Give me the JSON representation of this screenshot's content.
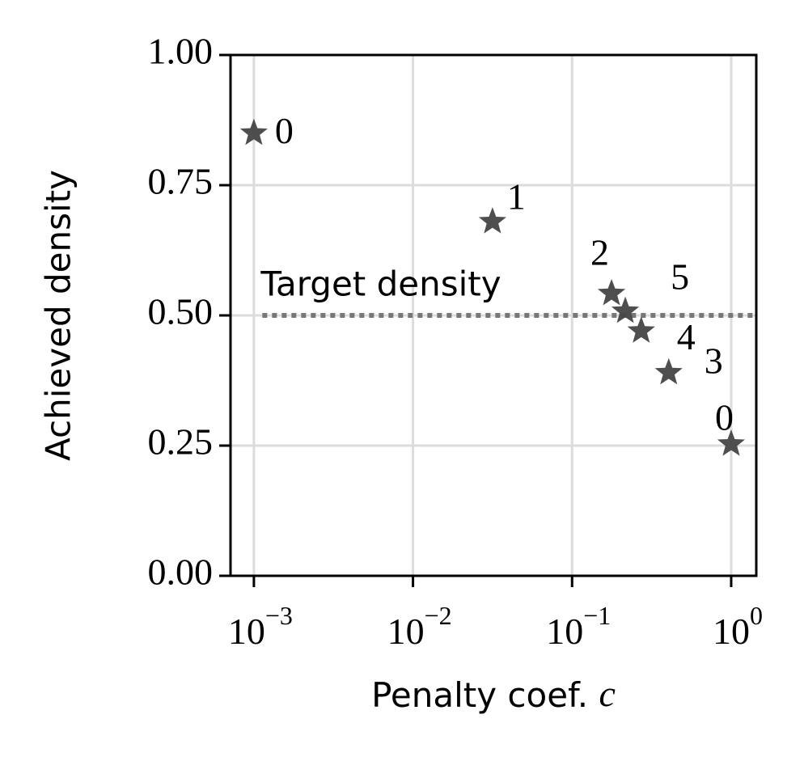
{
  "chart_data": {
    "type": "scatter",
    "xlabel": "Penalty coef.",
    "xlabel_symbol": "c",
    "ylabel": "Achieved density",
    "x": [
      0.001,
      0.0316,
      0.177,
      0.216,
      0.272,
      0.405,
      1.0
    ],
    "values": [
      0.85,
      0.68,
      0.542,
      0.508,
      0.47,
      0.39,
      0.253
    ],
    "point_labels": [
      "0",
      "1",
      "2",
      "5",
      "4",
      "3",
      "0"
    ],
    "color": "#444444",
    "xscale": "log",
    "xlim": [
      0.000713,
      1.438
    ],
    "ylim": [
      0,
      1
    ],
    "xticks": [
      {
        "value": 0.001,
        "label": "10",
        "exponent": "−3"
      },
      {
        "value": 0.01,
        "label": "10",
        "exponent": "−2"
      },
      {
        "value": 0.1,
        "label": "10",
        "exponent": "−1"
      },
      {
        "value": 1,
        "label": "10",
        "exponent": "0"
      }
    ],
    "yticks": [
      {
        "value": 0,
        "label": "0.00"
      },
      {
        "value": 0.25,
        "label": "0.25"
      },
      {
        "value": 0.5,
        "label": "0.50"
      },
      {
        "value": 0.75,
        "label": "0.75"
      },
      {
        "value": 1,
        "label": "1.00"
      }
    ],
    "grid": true,
    "target": {
      "value": 0.5,
      "x_start": 0.00113,
      "label": "Target density",
      "color": "#777777"
    }
  }
}
